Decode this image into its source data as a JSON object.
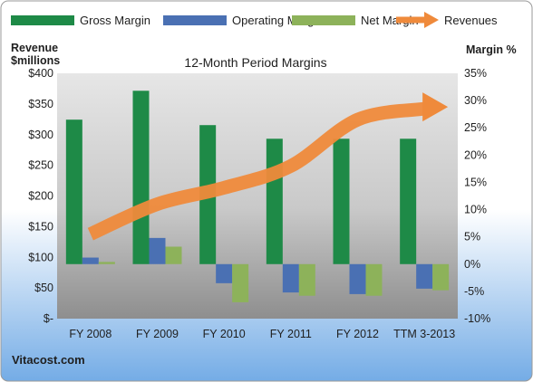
{
  "chart_data": {
    "type": "bar",
    "title": "12-Month Period Margins",
    "left_axis_title": [
      "Revenue",
      "$millions"
    ],
    "right_axis_title": "Margin %",
    "categories": [
      "FY 2008",
      "FY 2009",
      "FY 2010",
      "FY 2011",
      "FY 2012",
      "TTM 3-2013"
    ],
    "left_ticks": [
      "$-",
      "$50",
      "$100",
      "$150",
      "$200",
      "$250",
      "$300",
      "$350",
      "$400"
    ],
    "right_ticks": [
      "-10%",
      "-5%",
      "0%",
      "5%",
      "10%",
      "15%",
      "20%",
      "25%",
      "30%",
      "35%"
    ],
    "right_axis_range": [
      -10,
      35
    ],
    "left_axis_range": [
      0,
      400
    ],
    "series": [
      {
        "name": "Gross Margin",
        "kind": "bar",
        "values": [
          26.5,
          31.8,
          25.5,
          23.0,
          23.0,
          23.0
        ]
      },
      {
        "name": "Operating Margin",
        "kind": "bar",
        "values": [
          1.2,
          4.8,
          -3.5,
          -5.2,
          -5.5,
          -4.5
        ]
      },
      {
        "name": "Net Margin",
        "kind": "bar",
        "values": [
          0.4,
          3.2,
          -7.0,
          -5.8,
          -5.8,
          -4.8
        ]
      },
      {
        "name": "Revenues",
        "kind": "arrow",
        "values": [
          5.5,
          11.0,
          14.0,
          18.0,
          26.5,
          28.5
        ]
      }
    ],
    "colors": {
      "Gross Margin": "#1e8a47",
      "Operating Margin": "#4a70b3",
      "Net Margin": "#8db25a",
      "Revenues": "#ef8a3b",
      "plot_bg_top": "#e4e4e4",
      "plot_bg_bottom": "#8c8c8c",
      "page_bg_top": "#ffffff",
      "page_bg_bottom": "#74ace6"
    },
    "legend_position": "top",
    "grid": false
  },
  "footer": {
    "brand": "Vitacost.com"
  }
}
